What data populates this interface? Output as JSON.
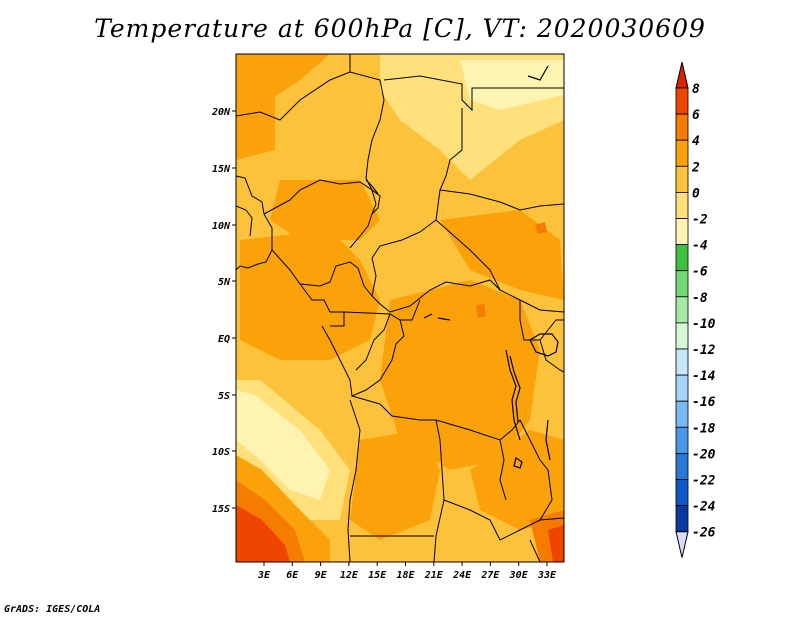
{
  "title": "Temperature at 600hPa [C], VT: 2020030609",
  "credit": "GrADS: IGES/COLA",
  "map": {
    "lat_labels": [
      "20N",
      "15N",
      "10N",
      "5N",
      "EQ",
      "5S",
      "10S",
      "15S"
    ],
    "lon_labels": [
      "3E",
      "6E",
      "9E",
      "12E",
      "15E",
      "18E",
      "21E",
      "24E",
      "27E",
      "30E",
      "33E"
    ],
    "lon_range": [
      0,
      35
    ],
    "lat_range": [
      -20,
      25
    ]
  },
  "colorbar": {
    "labels": [
      "8",
      "6",
      "4",
      "2",
      "0",
      "-2",
      "-4",
      "-6",
      "-8",
      "-10",
      "-12",
      "-14",
      "-16",
      "-18",
      "-20",
      "-22",
      "-24",
      "-26"
    ],
    "colors": [
      "#dc2000",
      "#f04500",
      "#f57c00",
      "#fba10a",
      "#fdc23c",
      "#ffe07a",
      "#fff3b2",
      "#40c040",
      "#74d874",
      "#a6e8a6",
      "#d8f6d8",
      "#c8e6f8",
      "#a6d4f6",
      "#7ab8f0",
      "#4c98e8",
      "#2878d8",
      "#1058c8",
      "#0838a0",
      "#001268"
    ],
    "over_color": "#dc2000",
    "under_color": "#d8dcf8"
  }
}
